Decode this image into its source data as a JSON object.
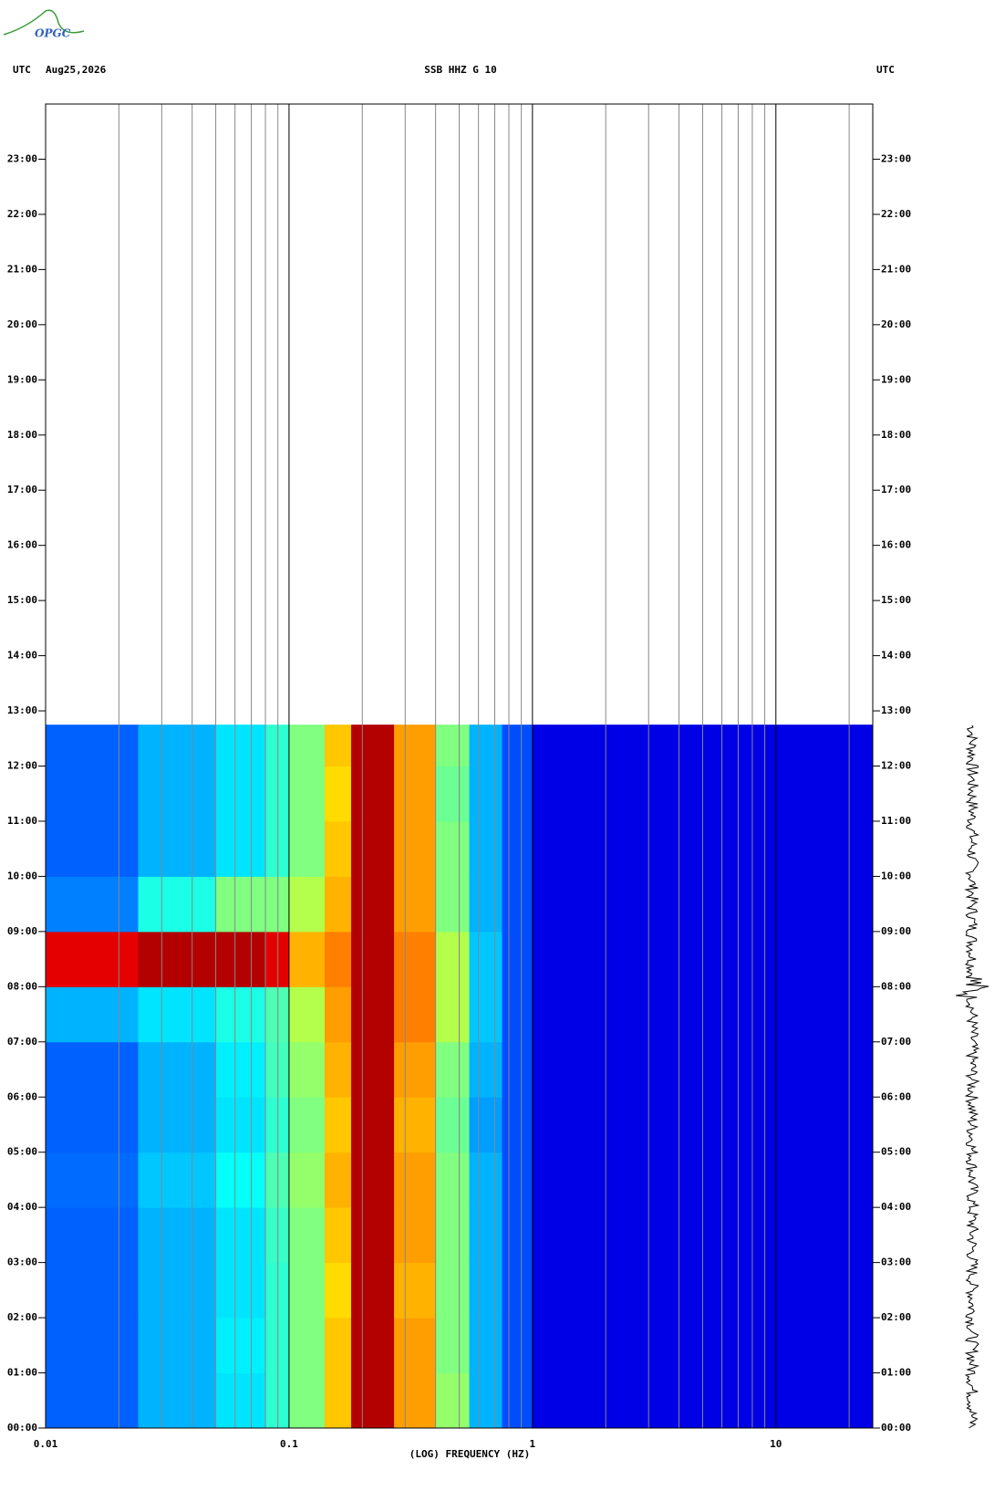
{
  "logo": "OPGC",
  "chart_data": {
    "type": "heatmap",
    "title": "SSB HHZ G 10",
    "timezone_left": "UTC",
    "date": "Aug25,2026",
    "timezone_right": "UTC",
    "xlabel": "(LOG) FREQUENCY (HZ)",
    "xscale": "log",
    "xlim": [
      0.01,
      25
    ],
    "xticks": [
      {
        "value": 0.01,
        "label": "0.01"
      },
      {
        "value": 0.1,
        "label": "0.1"
      },
      1,
      10
    ],
    "xminor": [
      0.02,
      0.03,
      0.04,
      0.05,
      0.06,
      0.07,
      0.08,
      0.09,
      0.2,
      0.3,
      0.4,
      0.5,
      0.6,
      0.7,
      0.8,
      0.9,
      2,
      3,
      4,
      5,
      6,
      7,
      8,
      9,
      20
    ],
    "ylim": [
      0,
      24
    ],
    "yticks": [
      {
        "value": 0,
        "label": "00:00"
      },
      {
        "value": 1,
        "label": "01:00"
      },
      {
        "value": 2,
        "label": "02:00"
      },
      {
        "value": 3,
        "label": "03:00"
      },
      {
        "value": 4,
        "label": "04:00"
      },
      {
        "value": 5,
        "label": "05:00"
      },
      {
        "value": 6,
        "label": "06:00"
      },
      {
        "value": 7,
        "label": "07:00"
      },
      {
        "value": 8,
        "label": "08:00"
      },
      {
        "value": 9,
        "label": "09:00"
      },
      {
        "value": 10,
        "label": "10:00"
      },
      {
        "value": 11,
        "label": "11:00"
      },
      {
        "value": 12,
        "label": "12:00"
      },
      {
        "value": 13,
        "label": "13:00"
      },
      {
        "value": 14,
        "label": "14:00"
      },
      {
        "value": 15,
        "label": "15:00"
      },
      {
        "value": 16,
        "label": "16:00"
      },
      {
        "value": 17,
        "label": "17:00"
      },
      {
        "value": 18,
        "label": "18:00"
      },
      {
        "value": 19,
        "label": "19:00"
      },
      {
        "value": 20,
        "label": "20:00"
      },
      {
        "value": 21,
        "label": "21:00"
      },
      {
        "value": 22,
        "label": "22:00"
      },
      {
        "value": 23,
        "label": "23:00"
      }
    ],
    "x_edges": [
      0.01,
      0.024,
      0.05,
      0.08,
      0.1,
      0.14,
      0.18,
      0.27,
      0.4,
      0.55,
      0.75,
      1,
      25
    ],
    "y_edges": [
      0,
      1,
      2,
      3,
      4,
      5,
      6,
      7,
      8,
      9,
      10,
      11,
      12,
      12.75
    ],
    "z": [
      [
        0.22,
        0.3,
        0.35,
        0.42,
        0.5,
        0.68,
        0.95,
        0.72,
        0.52,
        0.3,
        0.2,
        0.1
      ],
      [
        0.22,
        0.3,
        0.36,
        0.42,
        0.5,
        0.68,
        0.95,
        0.72,
        0.5,
        0.3,
        0.2,
        0.1
      ],
      [
        0.22,
        0.3,
        0.35,
        0.42,
        0.5,
        0.66,
        0.95,
        0.7,
        0.5,
        0.3,
        0.2,
        0.1
      ],
      [
        0.22,
        0.3,
        0.35,
        0.43,
        0.5,
        0.68,
        0.95,
        0.72,
        0.5,
        0.3,
        0.2,
        0.1
      ],
      [
        0.23,
        0.32,
        0.38,
        0.45,
        0.52,
        0.7,
        0.95,
        0.72,
        0.5,
        0.3,
        0.2,
        0.1
      ],
      [
        0.22,
        0.3,
        0.35,
        0.42,
        0.5,
        0.68,
        0.95,
        0.7,
        0.48,
        0.28,
        0.2,
        0.1
      ],
      [
        0.22,
        0.3,
        0.36,
        0.44,
        0.52,
        0.7,
        0.95,
        0.72,
        0.5,
        0.3,
        0.2,
        0.1
      ],
      [
        0.3,
        0.35,
        0.4,
        0.45,
        0.55,
        0.72,
        0.95,
        0.75,
        0.55,
        0.32,
        0.2,
        0.1
      ],
      [
        0.9,
        0.95,
        0.95,
        0.9,
        0.7,
        0.75,
        0.95,
        0.75,
        0.55,
        0.32,
        0.2,
        0.1
      ],
      [
        0.25,
        0.4,
        0.5,
        0.5,
        0.55,
        0.7,
        0.95,
        0.72,
        0.5,
        0.3,
        0.2,
        0.1
      ],
      [
        0.22,
        0.3,
        0.35,
        0.42,
        0.5,
        0.68,
        0.95,
        0.72,
        0.5,
        0.3,
        0.2,
        0.1
      ],
      [
        0.22,
        0.3,
        0.35,
        0.42,
        0.5,
        0.66,
        0.95,
        0.72,
        0.48,
        0.3,
        0.2,
        0.1
      ],
      [
        0.22,
        0.3,
        0.35,
        0.42,
        0.5,
        0.68,
        0.95,
        0.72,
        0.5,
        0.3,
        0.2,
        0.1
      ]
    ]
  }
}
